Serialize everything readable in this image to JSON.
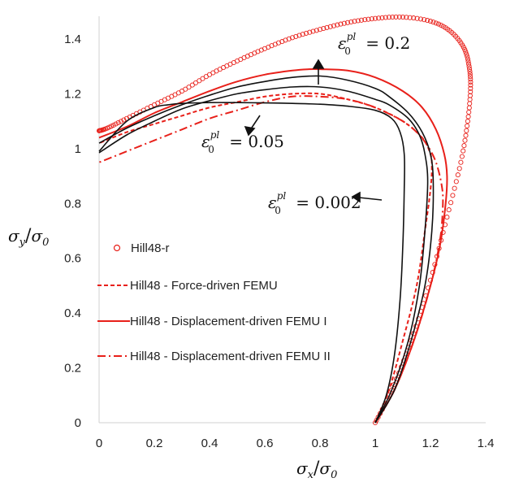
{
  "chart_data": {
    "type": "line",
    "title": "",
    "xlabel": "σx/σ0",
    "ylabel": "σy/σ0",
    "xlim": [
      0,
      1.4
    ],
    "ylim": [
      0,
      1.5
    ],
    "xticks": [
      "0",
      "0.2",
      "0.4",
      "0.6",
      "0.8",
      "1",
      "1.2",
      "1.4"
    ],
    "yticks": [
      "0",
      "0.2",
      "0.4",
      "0.6",
      "0.8",
      "1",
      "1.2",
      "1.4"
    ],
    "grid": false,
    "legend_position": "left-center",
    "colors": {
      "red": "#e8201a",
      "black": "#111111",
      "marker_red": "#e8201a"
    },
    "legend": [
      {
        "label": "Hill48-r",
        "style": "circle-markers",
        "color": "#e8201a"
      },
      {
        "label": "Hill48 - Force-driven FEMU",
        "style": "dashed",
        "color": "#e8201a"
      },
      {
        "label": "Hill48 - Displacement-driven FEMU I",
        "style": "solid",
        "color": "#e8201a"
      },
      {
        "label": "Hill48 - Displacement-driven FEMU II",
        "style": "dash-dot",
        "color": "#e8201a"
      }
    ],
    "annotations": [
      {
        "text": "ε0pl = 0.2",
        "base": "ε",
        "sub": "0",
        "sup": "pl",
        "rest": " = 0.2"
      },
      {
        "text": "ε0pl = 0.05",
        "base": "ε",
        "sub": "0",
        "sup": "pl",
        "rest": " = 0.05"
      },
      {
        "text": "ε0pl = 0.002",
        "base": "ε",
        "sub": "0",
        "sup": "pl",
        "rest": " = 0.002"
      }
    ],
    "series": [
      {
        "name": "Hill48-r",
        "style": "markers",
        "color": "#e8201a",
        "x": [
          1.0,
          1.06,
          1.13,
          1.2,
          1.26,
          1.31,
          1.335,
          1.345,
          1.34,
          1.32,
          1.27,
          1.2,
          1.1,
          1.0,
          0.9,
          0.8,
          0.7,
          0.6,
          0.5,
          0.4,
          0.3,
          0.2,
          0.1,
          0.03,
          0.0
        ],
        "y": [
          0.0,
          0.12,
          0.3,
          0.52,
          0.75,
          0.95,
          1.1,
          1.22,
          1.3,
          1.37,
          1.43,
          1.465,
          1.48,
          1.475,
          1.46,
          1.435,
          1.405,
          1.365,
          1.32,
          1.27,
          1.21,
          1.16,
          1.11,
          1.075,
          1.065
        ]
      },
      {
        "name": "Hill48 - Force-driven FEMU",
        "style": "dashed",
        "color": "#e8201a",
        "x": [
          1.0,
          1.05,
          1.1,
          1.15,
          1.18,
          1.2,
          1.205,
          1.2,
          1.17,
          1.1,
          1.0,
          0.9,
          0.8,
          0.7,
          0.6,
          0.5,
          0.4,
          0.3,
          0.2,
          0.1,
          0.0
        ],
        "y": [
          0.0,
          0.12,
          0.3,
          0.5,
          0.7,
          0.85,
          0.93,
          0.98,
          1.04,
          1.1,
          1.15,
          1.18,
          1.2,
          1.2,
          1.19,
          1.17,
          1.15,
          1.12,
          1.09,
          1.06,
          1.02
        ]
      },
      {
        "name": "Hill48 - Displacement-driven FEMU I",
        "style": "solid",
        "color": "#e8201a",
        "x": [
          1.0,
          1.07,
          1.14,
          1.2,
          1.235,
          1.255,
          1.26,
          1.25,
          1.22,
          1.17,
          1.1,
          1.0,
          0.9,
          0.8,
          0.76,
          0.7,
          0.6,
          0.5,
          0.4,
          0.3,
          0.2,
          0.1,
          0.0
        ],
        "y": [
          0.0,
          0.12,
          0.3,
          0.5,
          0.65,
          0.8,
          0.9,
          0.98,
          1.07,
          1.15,
          1.21,
          1.26,
          1.285,
          1.29,
          1.29,
          1.285,
          1.27,
          1.245,
          1.21,
          1.17,
          1.13,
          1.08,
          1.04
        ]
      },
      {
        "name": "Hill48 - Displacement-driven FEMU II",
        "style": "dash-dot",
        "color": "#e8201a",
        "x": [
          1.0,
          1.07,
          1.14,
          1.2,
          1.235,
          1.245,
          1.24,
          1.22,
          1.19,
          1.15,
          1.1,
          1.0,
          0.9,
          0.8,
          0.7,
          0.6,
          0.5,
          0.4,
          0.3,
          0.2,
          0.1,
          0.0
        ],
        "y": [
          0.0,
          0.12,
          0.3,
          0.5,
          0.67,
          0.8,
          0.87,
          0.95,
          1.01,
          1.06,
          1.1,
          1.15,
          1.18,
          1.19,
          1.19,
          1.17,
          1.14,
          1.11,
          1.07,
          1.03,
          0.99,
          0.95
        ]
      },
      {
        "name": "ε0pl = 0.002",
        "style": "solid",
        "color": "#111111",
        "x": [
          1.0,
          1.04,
          1.07,
          1.09,
          1.1,
          1.105,
          1.105,
          1.09,
          1.06,
          1.0,
          0.9,
          0.8,
          0.7,
          0.6,
          0.5,
          0.4,
          0.3,
          0.25,
          0.2,
          0.1,
          0.0
        ],
        "y": [
          0.0,
          0.1,
          0.25,
          0.45,
          0.65,
          0.85,
          0.98,
          1.06,
          1.11,
          1.14,
          1.155,
          1.162,
          1.165,
          1.167,
          1.168,
          1.168,
          1.165,
          1.16,
          1.15,
          1.1,
          0.99
        ]
      },
      {
        "name": "ε0pl = 0.05",
        "style": "solid",
        "color": "#111111",
        "x": [
          1.0,
          1.06,
          1.12,
          1.16,
          1.18,
          1.19,
          1.18,
          1.16,
          1.12,
          1.05,
          1.0,
          0.9,
          0.8,
          0.7,
          0.6,
          0.5,
          0.4,
          0.3,
          0.2,
          0.1,
          0.0
        ],
        "y": [
          0.0,
          0.12,
          0.3,
          0.5,
          0.7,
          0.88,
          0.98,
          1.05,
          1.11,
          1.16,
          1.18,
          1.21,
          1.225,
          1.225,
          1.215,
          1.2,
          1.175,
          1.145,
          1.1,
          1.05,
          0.985
        ]
      },
      {
        "name": "ε0pl = 0.2",
        "style": "solid",
        "color": "#111111",
        "x": [
          1.0,
          1.07,
          1.13,
          1.18,
          1.205,
          1.21,
          1.2,
          1.17,
          1.12,
          1.05,
          1.0,
          0.9,
          0.8,
          0.7,
          0.6,
          0.5,
          0.4,
          0.3,
          0.2,
          0.1,
          0.0
        ],
        "y": [
          0.0,
          0.12,
          0.3,
          0.5,
          0.7,
          0.88,
          0.98,
          1.06,
          1.13,
          1.19,
          1.22,
          1.25,
          1.265,
          1.26,
          1.245,
          1.225,
          1.195,
          1.16,
          1.12,
          1.075,
          1.02
        ]
      }
    ]
  }
}
